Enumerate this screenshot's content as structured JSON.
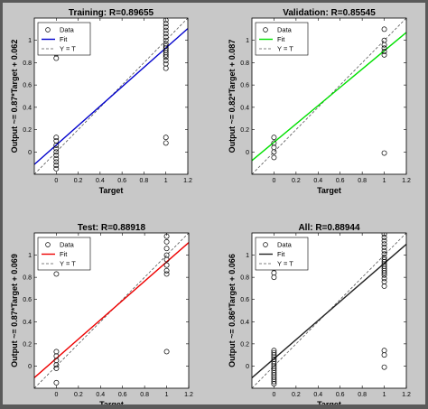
{
  "chart_data": [
    {
      "type": "scatter",
      "title": "Training: R=0.89655",
      "xlabel": "Target",
      "ylabel": "Output ~= 0.87*Target + 0.062",
      "fit_slope": 0.87,
      "fit_intercept": 0.062,
      "fit_color": "#0000cc",
      "xlim": [
        -0.2,
        1.2
      ],
      "ylim": [
        -0.2,
        1.2
      ],
      "xticks": [
        "0",
        "0.2",
        "0.4",
        "0.6",
        "0.8",
        "1",
        "1.2"
      ],
      "yticks": [
        "0",
        "0.2",
        "0.4",
        "0.6",
        "0.8",
        "1"
      ],
      "legend": [
        "Data",
        "Fit",
        "Y = T"
      ],
      "legend_loc": "top-left",
      "points": [
        [
          0,
          0.84
        ],
        [
          0,
          0.88
        ],
        [
          0,
          0.13
        ],
        [
          0,
          0.1
        ],
        [
          0,
          0.06
        ],
        [
          0,
          0.03
        ],
        [
          0,
          0.0
        ],
        [
          0,
          -0.03
        ],
        [
          0,
          -0.06
        ],
        [
          0,
          -0.09
        ],
        [
          0,
          -0.12
        ],
        [
          0,
          -0.15
        ],
        [
          1,
          1.18
        ],
        [
          1,
          1.15
        ],
        [
          1,
          1.12
        ],
        [
          1,
          1.09
        ],
        [
          1,
          1.06
        ],
        [
          1,
          1.03
        ],
        [
          1,
          1.0
        ],
        [
          1,
          0.97
        ],
        [
          1,
          0.95
        ],
        [
          1,
          0.93
        ],
        [
          1,
          0.91
        ],
        [
          1,
          0.89
        ],
        [
          1,
          0.87
        ],
        [
          1,
          0.85
        ],
        [
          1,
          0.82
        ],
        [
          1,
          0.79
        ],
        [
          1,
          0.75
        ],
        [
          1,
          0.13
        ],
        [
          1,
          0.08
        ]
      ]
    },
    {
      "type": "scatter",
      "title": "Validation: R=0.85545",
      "xlabel": "Target",
      "ylabel": "Output ~= 0.82*Target + 0.087",
      "fit_slope": 0.82,
      "fit_intercept": 0.087,
      "fit_color": "#00e000",
      "xlim": [
        -0.2,
        1.2
      ],
      "ylim": [
        -0.2,
        1.2
      ],
      "xticks": [
        "0",
        "0.2",
        "0.4",
        "0.6",
        "0.8",
        "1",
        "1.2"
      ],
      "yticks": [
        "0",
        "0.2",
        "0.4",
        "0.6",
        "0.8",
        "1"
      ],
      "legend": [
        "Data",
        "Fit",
        "Y = T"
      ],
      "legend_loc": "top-left",
      "points": [
        [
          0,
          0.13
        ],
        [
          0,
          0.08
        ],
        [
          0,
          0.04
        ],
        [
          0,
          0.0
        ],
        [
          0,
          -0.05
        ],
        [
          1,
          1.1
        ],
        [
          1,
          1.0
        ],
        [
          1,
          0.96
        ],
        [
          1,
          0.93
        ],
        [
          1,
          0.9
        ],
        [
          1,
          0.87
        ],
        [
          1,
          -0.01
        ]
      ]
    },
    {
      "type": "scatter",
      "title": "Test: R=0.88918",
      "xlabel": "Target",
      "ylabel": "Output ~= 0.87*Target + 0.069",
      "fit_slope": 0.87,
      "fit_intercept": 0.069,
      "fit_color": "#ee0000",
      "xlim": [
        -0.2,
        1.2
      ],
      "ylim": [
        -0.2,
        1.2
      ],
      "xticks": [
        "0",
        "0.2",
        "0.4",
        "0.6",
        "0.8",
        "1",
        "1.2"
      ],
      "yticks": [
        "0",
        "0.2",
        "0.4",
        "0.6",
        "0.8",
        "1"
      ],
      "legend": [
        "Data",
        "Fit",
        "Y = T"
      ],
      "legend_loc": "top-left",
      "points": [
        [
          0,
          0.83
        ],
        [
          0,
          0.13
        ],
        [
          0,
          0.09
        ],
        [
          0,
          0.05
        ],
        [
          0,
          0.01
        ],
        [
          0,
          -0.02
        ],
        [
          0,
          -0.15
        ],
        [
          1,
          1.17
        ],
        [
          1,
          1.12
        ],
        [
          1,
          1.06
        ],
        [
          1,
          1.0
        ],
        [
          1,
          0.96
        ],
        [
          1,
          0.91
        ],
        [
          1,
          0.86
        ],
        [
          1,
          0.83
        ],
        [
          1,
          0.13
        ]
      ]
    },
    {
      "type": "scatter",
      "title": "All: R=0.88944",
      "xlabel": "Target",
      "ylabel": "Output ~= 0.86*Target + 0.066",
      "fit_slope": 0.86,
      "fit_intercept": 0.066,
      "fit_color": "#222222",
      "xlim": [
        -0.2,
        1.2
      ],
      "ylim": [
        -0.2,
        1.2
      ],
      "xticks": [
        "0",
        "0.2",
        "0.4",
        "0.6",
        "0.8",
        "1",
        "1.2"
      ],
      "yticks": [
        "0",
        "0.2",
        "0.4",
        "0.6",
        "0.8",
        "1"
      ],
      "legend": [
        "Data",
        "Fit",
        "Y = T"
      ],
      "legend_loc": "top-left",
      "points": [
        [
          0,
          0.88
        ],
        [
          0,
          0.84
        ],
        [
          0,
          0.8
        ],
        [
          0,
          0.14
        ],
        [
          0,
          0.12
        ],
        [
          0,
          0.1
        ],
        [
          0,
          0.08
        ],
        [
          0,
          0.06
        ],
        [
          0,
          0.04
        ],
        [
          0,
          0.02
        ],
        [
          0,
          0.0
        ],
        [
          0,
          -0.02
        ],
        [
          0,
          -0.04
        ],
        [
          0,
          -0.06
        ],
        [
          0,
          -0.08
        ],
        [
          0,
          -0.1
        ],
        [
          0,
          -0.12
        ],
        [
          0,
          -0.14
        ],
        [
          0,
          -0.16
        ],
        [
          1,
          1.19
        ],
        [
          1,
          1.16
        ],
        [
          1,
          1.13
        ],
        [
          1,
          1.1
        ],
        [
          1,
          1.07
        ],
        [
          1,
          1.04
        ],
        [
          1,
          1.01
        ],
        [
          1,
          0.98
        ],
        [
          1,
          0.96
        ],
        [
          1,
          0.94
        ],
        [
          1,
          0.92
        ],
        [
          1,
          0.9
        ],
        [
          1,
          0.88
        ],
        [
          1,
          0.86
        ],
        [
          1,
          0.84
        ],
        [
          1,
          0.82
        ],
        [
          1,
          0.79
        ],
        [
          1,
          0.76
        ],
        [
          1,
          0.72
        ],
        [
          1,
          0.14
        ],
        [
          1,
          0.1
        ],
        [
          1,
          -0.01
        ]
      ]
    }
  ]
}
